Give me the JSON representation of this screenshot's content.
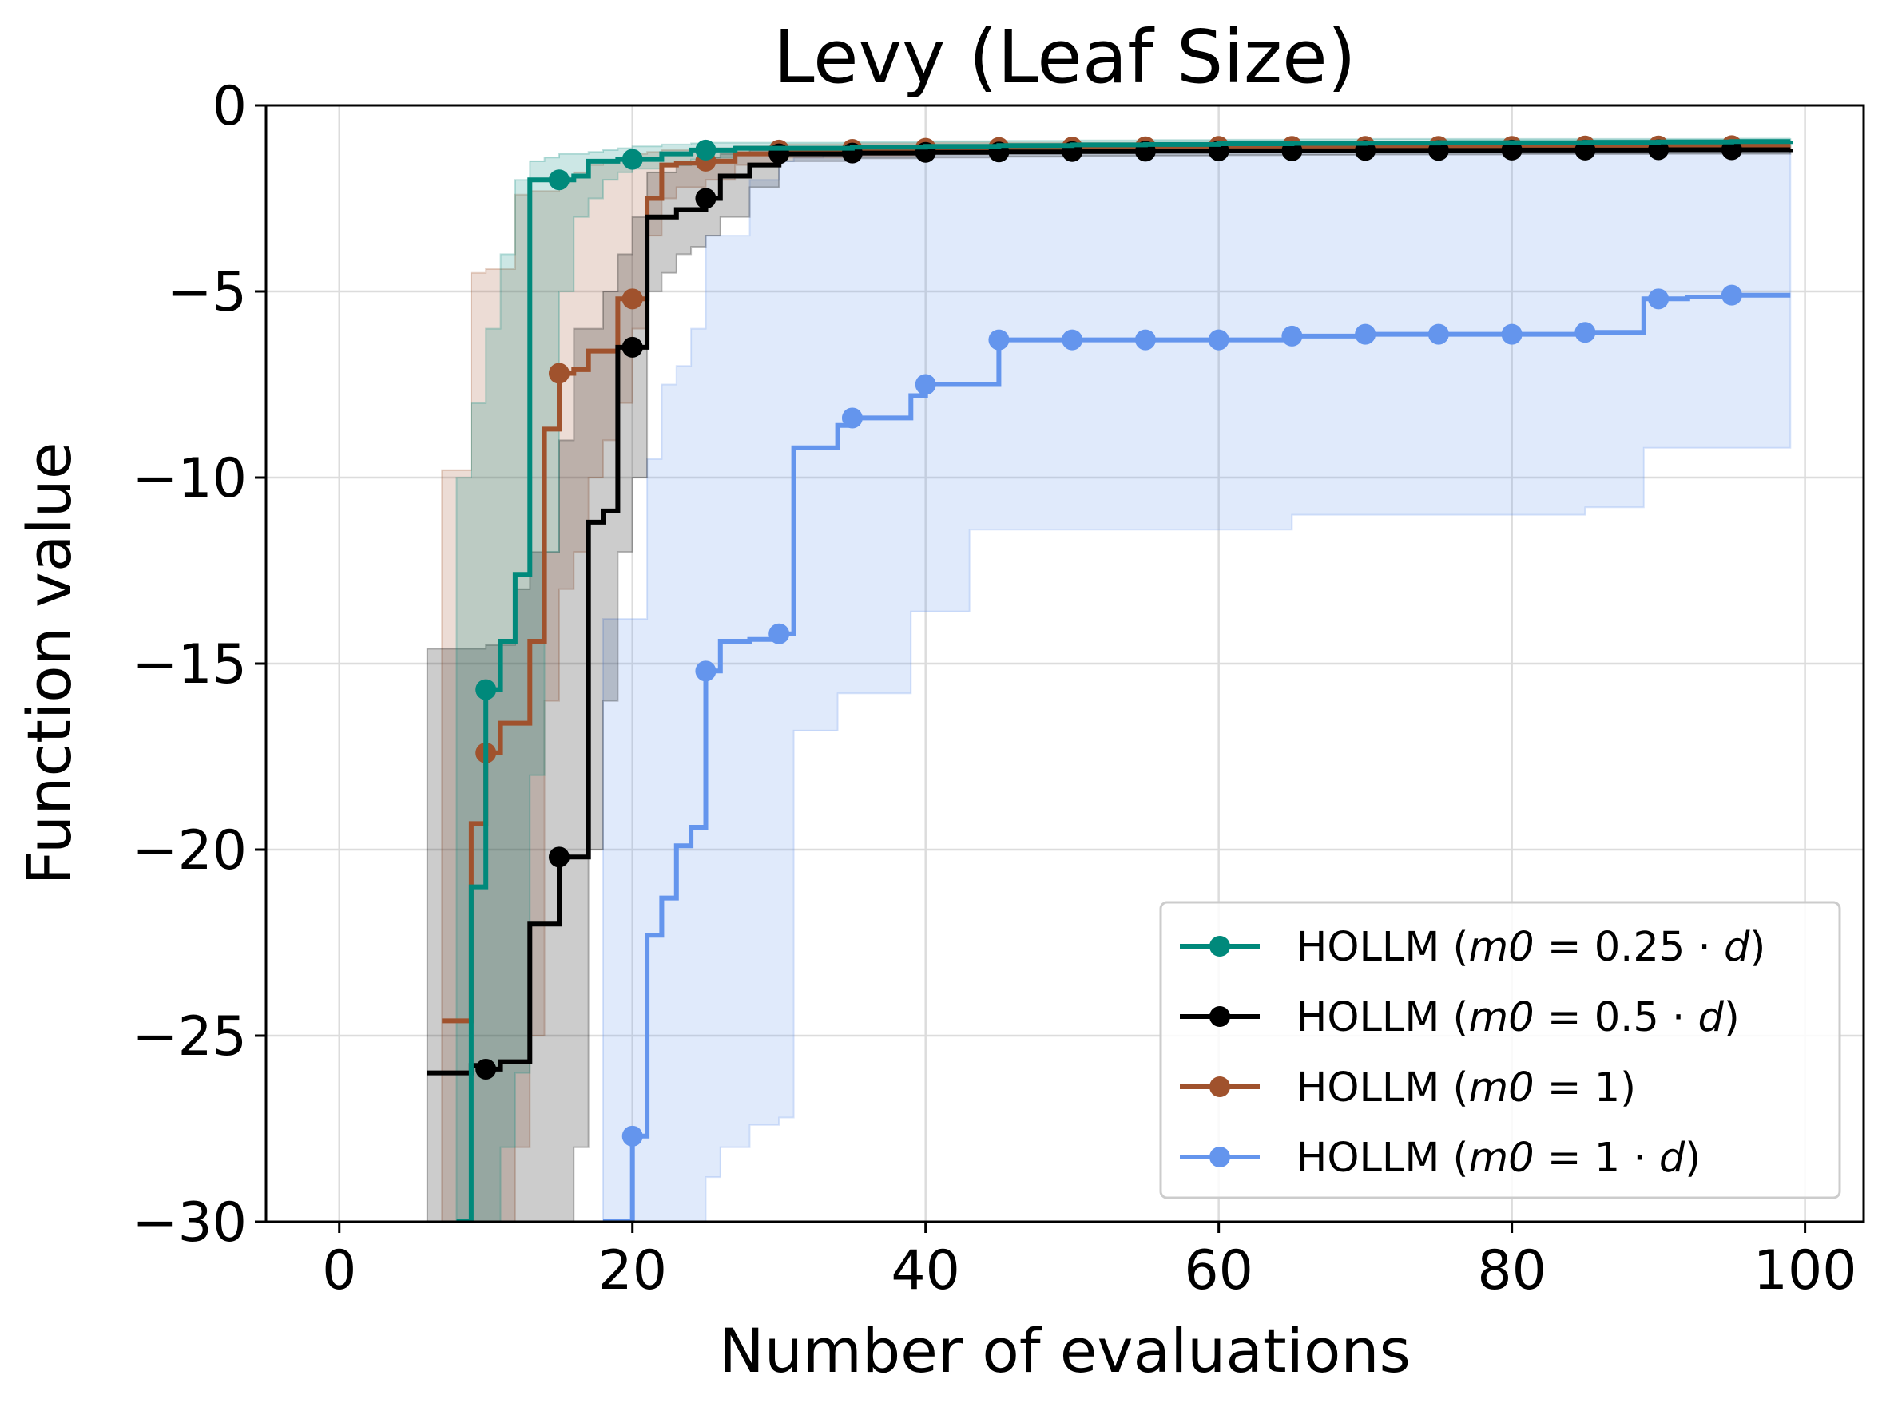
{
  "chart_data": {
    "type": "line",
    "title": "Levy (Leaf Size)",
    "xlabel": "Number of evaluations",
    "ylabel": "Function value",
    "xlim": [
      -5,
      104
    ],
    "ylim": [
      -30,
      0
    ],
    "xticks": [
      0,
      20,
      40,
      60,
      80,
      100
    ],
    "xtick_labels": [
      "0",
      "20",
      "40",
      "60",
      "80",
      "100"
    ],
    "yticks": [
      0,
      -5,
      -10,
      -15,
      -20,
      -25,
      -30
    ],
    "ytick_labels": [
      "0",
      "−5",
      "−10",
      "−15",
      "−20",
      "−25",
      "−30"
    ],
    "grid": true,
    "legend_position": "lower right",
    "series": [
      {
        "name": "HOLLM (m0 = 0.25 · d)",
        "legend_label": [
          "HOLLM (",
          "m0",
          " = 0.25 · ",
          "d",
          ")"
        ],
        "color": "#00897b",
        "x": [
          8,
          9,
          10,
          11,
          12,
          13,
          14,
          15,
          16,
          17,
          18,
          19,
          20,
          22,
          24,
          25,
          27,
          30,
          35,
          40,
          45,
          50,
          55,
          60,
          65,
          70,
          75,
          80,
          85,
          90,
          95,
          99
        ],
        "y": [
          -30,
          -21,
          -15.7,
          -14.4,
          -12.6,
          -2.0,
          -2.0,
          -2.0,
          -1.9,
          -1.5,
          -1.5,
          -1.45,
          -1.45,
          -1.3,
          -1.2,
          -1.2,
          -1.15,
          -1.15,
          -1.12,
          -1.1,
          -1.08,
          -1.06,
          -1.05,
          -1.03,
          -1.02,
          -1.01,
          -1.0,
          -1.0,
          -0.99,
          -0.98,
          -0.97,
          -0.96
        ],
        "band_upper": [
          -10,
          -8,
          -6,
          -4,
          -2,
          -1.5,
          -1.4,
          -1.3,
          -1.3,
          -1.25,
          -1.2,
          -1.15,
          -1.1,
          -1.05,
          -1.02,
          -1.0,
          -1.0,
          -1.0,
          -0.98,
          -0.96,
          -0.95,
          -0.94,
          -0.93,
          -0.92,
          -0.91,
          -0.9,
          -0.9,
          -0.9,
          -0.9,
          -0.9,
          -0.89,
          -0.88
        ],
        "band_lower": [
          -30,
          -30,
          -30,
          -28,
          -26,
          -18,
          -12,
          -5,
          -3,
          -2.5,
          -2.0,
          -1.8,
          -1.7,
          -1.6,
          -1.45,
          -1.4,
          -1.3,
          -1.25,
          -1.25,
          -1.22,
          -1.2,
          -1.18,
          -1.15,
          -1.13,
          -1.12,
          -1.1,
          -1.1,
          -1.1,
          -1.08,
          -1.07,
          -1.06,
          -1.05
        ],
        "markers_x": [
          10,
          15,
          20,
          25
        ],
        "markers_y": [
          -15.7,
          -2.0,
          -1.45,
          -1.2
        ]
      },
      {
        "name": "HOLLM (m0 = 0.5 · d)",
        "legend_label": [
          "HOLLM (",
          "m0",
          " = 0.5 · ",
          "d",
          ")"
        ],
        "color": "#000000",
        "x": [
          6,
          9,
          10,
          11,
          12,
          13,
          14,
          15,
          16,
          17,
          18,
          19,
          20,
          21,
          22,
          23,
          24,
          25,
          26,
          28,
          30,
          35,
          40,
          45,
          50,
          55,
          60,
          65,
          70,
          75,
          80,
          85,
          90,
          95,
          99
        ],
        "y": [
          -26.0,
          -25.8,
          -25.9,
          -25.7,
          -25.7,
          -22.0,
          -22.0,
          -20.2,
          -20.2,
          -11.2,
          -10.9,
          -6.5,
          -6.5,
          -3.0,
          -3.0,
          -2.8,
          -2.8,
          -2.5,
          -1.9,
          -1.6,
          -1.3,
          -1.28,
          -1.26,
          -1.25,
          -1.24,
          -1.23,
          -1.22,
          -1.22,
          -1.21,
          -1.21,
          -1.2,
          -1.2,
          -1.19,
          -1.19,
          -1.18
        ],
        "band_upper": [
          -14.6,
          -14.6,
          -14.5,
          -14.5,
          -13,
          -12,
          -12,
          -9,
          -6,
          -6,
          -5,
          -4,
          -3,
          -1.8,
          -1.8,
          -1.6,
          -1.5,
          -1.4,
          -1.3,
          -1.2,
          -1.15,
          -1.14,
          -1.13,
          -1.12,
          -1.12,
          -1.11,
          -1.11,
          -1.1,
          -1.1,
          -1.1,
          -1.1,
          -1.1,
          -1.1,
          -1.1,
          -1.1
        ],
        "band_lower": [
          -30,
          -30,
          -30,
          -30,
          -30,
          -30,
          -30,
          -30,
          -28,
          -20,
          -16,
          -12,
          -10,
          -5,
          -4.5,
          -4.0,
          -3.8,
          -3.5,
          -3.0,
          -2.2,
          -1.5,
          -1.42,
          -1.4,
          -1.38,
          -1.36,
          -1.35,
          -1.34,
          -1.33,
          -1.32,
          -1.32,
          -1.31,
          -1.31,
          -1.3,
          -1.3,
          -1.3
        ],
        "markers_x": [
          10,
          15,
          20,
          25,
          30,
          35,
          40,
          45,
          50,
          55,
          60,
          65,
          70,
          75,
          80,
          85,
          90,
          95
        ],
        "markers_y": [
          -25.9,
          -20.2,
          -6.5,
          -2.5,
          -1.3,
          -1.28,
          -1.26,
          -1.25,
          -1.24,
          -1.23,
          -1.22,
          -1.22,
          -1.21,
          -1.21,
          -1.2,
          -1.2,
          -1.19,
          -1.19
        ]
      },
      {
        "name": "HOLLM (m0 = 1)",
        "legend_label": [
          "HOLLM (",
          "m0",
          " = 1)"
        ],
        "color": "#a0522d",
        "x": [
          7,
          8,
          9,
          10,
          11,
          12,
          13,
          14,
          15,
          16,
          17,
          18,
          19,
          20,
          21,
          22,
          23,
          25,
          27,
          30,
          35,
          40,
          45,
          50,
          55,
          60,
          65,
          70,
          75,
          80,
          85,
          90,
          95,
          99
        ],
        "y": [
          -24.6,
          -24.6,
          -19.3,
          -17.4,
          -16.6,
          -16.6,
          -14.4,
          -8.7,
          -7.2,
          -7.1,
          -6.6,
          -6.6,
          -5.2,
          -5.2,
          -2.5,
          -1.6,
          -1.55,
          -1.5,
          -1.3,
          -1.2,
          -1.18,
          -1.15,
          -1.13,
          -1.12,
          -1.11,
          -1.1,
          -1.1,
          -1.1,
          -1.1,
          -1.1,
          -1.09,
          -1.09,
          -1.08,
          -1.08
        ],
        "band_upper": [
          -9.8,
          -9.8,
          -4.5,
          -4.4,
          -4.4,
          -2.4,
          -2.3,
          -2.3,
          -2.0,
          -1.8,
          -1.6,
          -1.5,
          -1.4,
          -1.3,
          -1.25,
          -1.2,
          -1.2,
          -1.15,
          -1.1,
          -1.05,
          -1.02,
          -1.0,
          -1.0,
          -1.0,
          -1.0,
          -0.99,
          -0.98,
          -0.98,
          -0.98,
          -0.97,
          -0.97,
          -0.96,
          -0.96,
          -0.96
        ],
        "band_lower": [
          -30,
          -30,
          -30,
          -30,
          -30,
          -28,
          -25,
          -16,
          -13,
          -12,
          -10,
          -9,
          -8,
          -6,
          -3.5,
          -2.5,
          -2.2,
          -2.0,
          -1.6,
          -1.4,
          -1.35,
          -1.3,
          -1.28,
          -1.26,
          -1.24,
          -1.22,
          -1.22,
          -1.21,
          -1.21,
          -1.2,
          -1.2,
          -1.2,
          -1.2,
          -1.2
        ],
        "markers_x": [
          10,
          15,
          20,
          25,
          30,
          35,
          40,
          45,
          50,
          55,
          60,
          65,
          70,
          75,
          80,
          85,
          90,
          95
        ],
        "markers_y": [
          -17.4,
          -7.2,
          -5.2,
          -1.5,
          -1.2,
          -1.18,
          -1.15,
          -1.13,
          -1.12,
          -1.11,
          -1.1,
          -1.1,
          -1.1,
          -1.1,
          -1.1,
          -1.09,
          -1.09,
          -1.08
        ]
      },
      {
        "name": "HOLLM (m0 = 1 · d)",
        "legend_label": [
          "HOLLM (",
          "m0",
          " = 1 · ",
          "d",
          ")"
        ],
        "color": "#6495ed",
        "x": [
          18,
          20,
          21,
          22,
          23,
          24,
          25,
          26,
          28,
          30,
          31,
          33,
          34,
          35,
          36,
          38,
          39,
          40,
          42,
          43,
          45,
          50,
          55,
          60,
          65,
          70,
          75,
          80,
          85,
          88,
          89,
          90,
          92,
          95,
          99
        ],
        "y": [
          -30,
          -27.7,
          -22.3,
          -21.3,
          -19.9,
          -19.4,
          -15.2,
          -14.4,
          -14.35,
          -14.2,
          -9.2,
          -9.2,
          -8.6,
          -8.4,
          -8.4,
          -8.4,
          -7.8,
          -7.5,
          -7.5,
          -7.5,
          -6.3,
          -6.3,
          -6.3,
          -6.3,
          -6.2,
          -6.15,
          -6.15,
          -6.15,
          -6.1,
          -6.1,
          -5.2,
          -5.2,
          -5.15,
          -5.1,
          -5.1
        ],
        "band_upper": [
          -13.8,
          -13.8,
          -9.5,
          -7.5,
          -7,
          -6,
          -3.5,
          -3.5,
          -2.0,
          -1.5,
          -1.4,
          -1.3,
          -1.3,
          -1.25,
          -1.2,
          -1.2,
          -1.2,
          -1.2,
          -1.2,
          -1.2,
          -1.2,
          -1.2,
          -1.2,
          -1.2,
          -1.2,
          -1.2,
          -1.2,
          -1.2,
          -1.2,
          -1.2,
          -1.2,
          -1.2,
          -1.2,
          -1.2,
          -1.2
        ],
        "band_lower": [
          -30,
          -30,
          -30,
          -30,
          -30,
          -30,
          -28.8,
          -28.0,
          -27.4,
          -27.2,
          -16.8,
          -16.8,
          -15.8,
          -15.8,
          -15.8,
          -15.8,
          -13.6,
          -13.6,
          -13.6,
          -11.4,
          -11.4,
          -11.4,
          -11.4,
          -11.4,
          -11.0,
          -11.0,
          -11.0,
          -11.0,
          -10.8,
          -10.8,
          -9.2,
          -9.2,
          -9.2,
          -9.2,
          -9.2
        ],
        "markers_x": [
          20,
          25,
          30,
          35,
          40,
          45,
          50,
          55,
          60,
          65,
          70,
          75,
          80,
          85,
          90,
          95
        ],
        "markers_y": [
          -27.7,
          -15.2,
          -14.2,
          -8.4,
          -7.5,
          -6.3,
          -6.3,
          -6.3,
          -6.3,
          -6.2,
          -6.15,
          -6.15,
          -6.15,
          -6.1,
          -5.2,
          -5.1
        ]
      }
    ]
  }
}
